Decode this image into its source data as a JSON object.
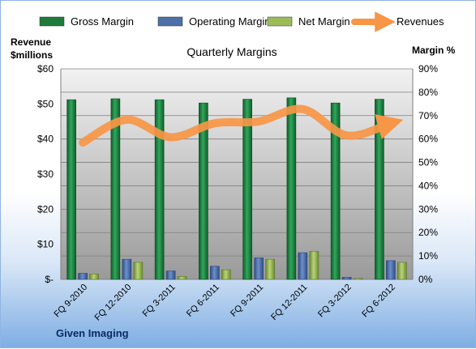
{
  "chart_data": {
    "type": "bar",
    "title": "Quarterly Margins",
    "categories": [
      "FQ 9-2010",
      "FQ 12-2010",
      "FQ 3-2011",
      "FQ 6-2011",
      "FQ 9-2011",
      "FQ 12-2011",
      "FQ 3-2012",
      "FQ 6-2012"
    ],
    "series": [
      {
        "name": "Gross Margin",
        "axis": "right",
        "color": "#1e7b3c",
        "values": [
          76.8,
          77.2,
          76.8,
          75.4,
          77.0,
          77.6,
          75.4,
          77.0
        ]
      },
      {
        "name": "Operating Margin",
        "axis": "right",
        "color": "#4f6fa8",
        "values": [
          2.6,
          8.6,
          3.6,
          5.6,
          9.2,
          11.4,
          0.9,
          8.0
        ]
      },
      {
        "name": "Net Margin",
        "axis": "right",
        "color": "#9bbb59",
        "values": [
          2.3,
          7.3,
          1.2,
          4.1,
          8.6,
          12.0,
          0.4,
          7.3
        ]
      },
      {
        "name": "Revenues",
        "axis": "left",
        "type": "line",
        "color": "#f79646",
        "values": [
          39,
          45.5,
          40.5,
          44.5,
          45,
          48.5,
          41,
          44.5
        ]
      }
    ],
    "y_left": {
      "label": "Revenue $millions",
      "label_line1": "Revenue",
      "label_line2": "$millions",
      "min": 0,
      "max": 60,
      "step": 10,
      "tick_labels": [
        "$-",
        "$10",
        "$20",
        "$30",
        "$40",
        "$50",
        "$60"
      ]
    },
    "y_right": {
      "label": "Margin %",
      "min": 0,
      "max": 90,
      "step": 10,
      "tick_labels": [
        "0%",
        "10%",
        "20%",
        "30%",
        "40%",
        "50%",
        "60%",
        "70%",
        "80%",
        "90%"
      ]
    },
    "grid": true,
    "legend_position": "top",
    "footer": "Given Imaging"
  }
}
